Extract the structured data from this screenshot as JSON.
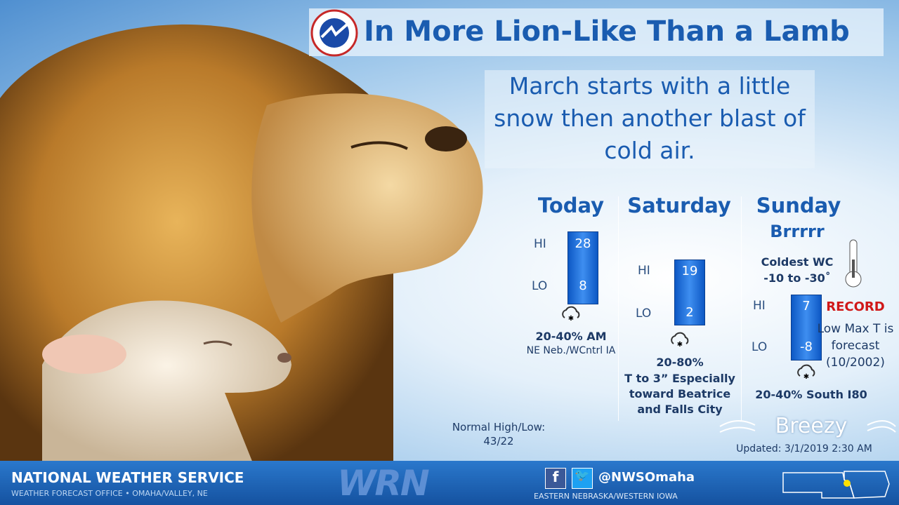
{
  "header": {
    "title": "In More Lion-Like Than a Lamb",
    "subtitle": "March starts with a little snow then another blast of cold air."
  },
  "days": [
    {
      "name": "Today",
      "hi_label": "HI",
      "hi": 28,
      "lo_label": "LO",
      "lo": 8,
      "precip": "20-40% AM",
      "note": "NE Neb./WCntrl IA"
    },
    {
      "name": "Saturday",
      "hi_label": "HI",
      "hi": 19,
      "lo_label": "LO",
      "lo": 2,
      "precip": "20-80%",
      "note": "T to 3” Especially toward Beatrice and Falls City"
    },
    {
      "name": "Sunday",
      "hi_label": "HI",
      "hi": 7,
      "lo_label": "LO",
      "lo": -8,
      "precip": "20-40% South I80",
      "tagline": "Brrrrr",
      "wind_chill_label": "Coldest WC",
      "wind_chill": "-10 to -30˚",
      "record": "RECORD",
      "record_note": "Low Max T is forecast (10/2002)"
    }
  ],
  "normal": {
    "label": "Normal High/Low:",
    "value": "43/22"
  },
  "breezy": "Breezy",
  "updated": "Updated:  3/1/2019 2:30 AM",
  "footer": {
    "org": "NATIONAL WEATHER SERVICE",
    "office": "WEATHER FORECAST OFFICE • OMAHA/VALLEY, NE",
    "logo": "WRN",
    "handle": "@NWSOmaha",
    "region": "EASTERN NEBRASKA/WESTERN IOWA"
  }
}
